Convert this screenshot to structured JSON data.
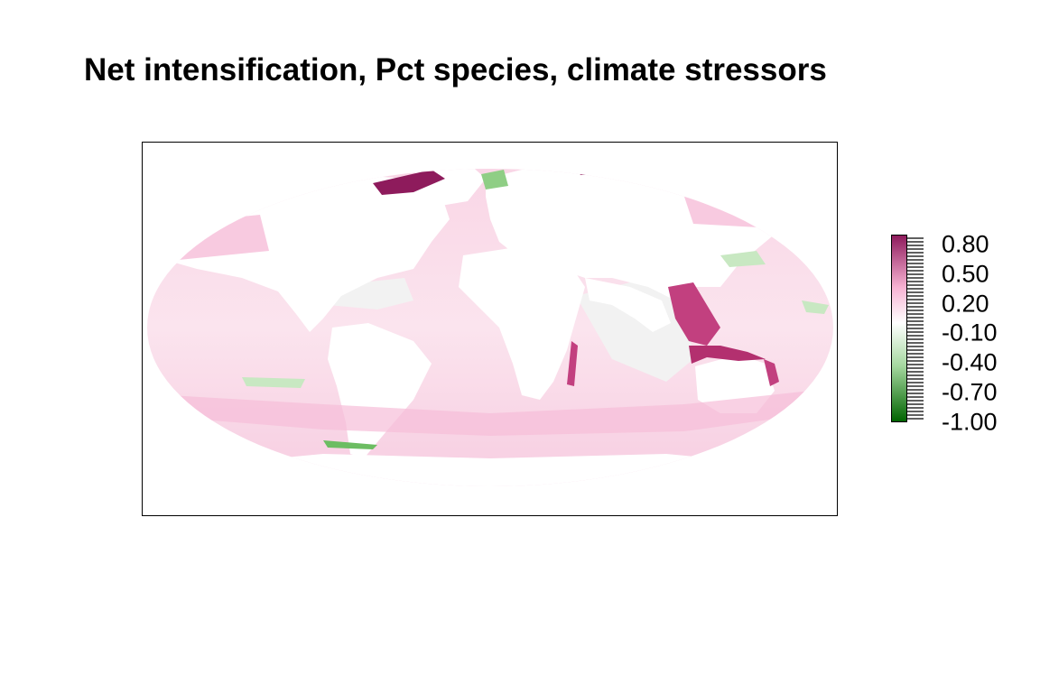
{
  "title": "Net intensification, Pct species, climate stressors",
  "colors": {
    "neg_max": "#006400",
    "neg_mid": "#a6d8a0",
    "neutral": "#ffffff",
    "pos_mid": "#f7b3d3",
    "pos_max": "#8e1b5c",
    "land": "#ffffff",
    "no_data": "#f0f0f0"
  },
  "legend": {
    "labels": [
      "0.80",
      "0.50",
      "0.20",
      "-0.10",
      "-0.40",
      "-0.70",
      "-1.00"
    ],
    "range": [
      -1.0,
      0.9
    ]
  }
}
